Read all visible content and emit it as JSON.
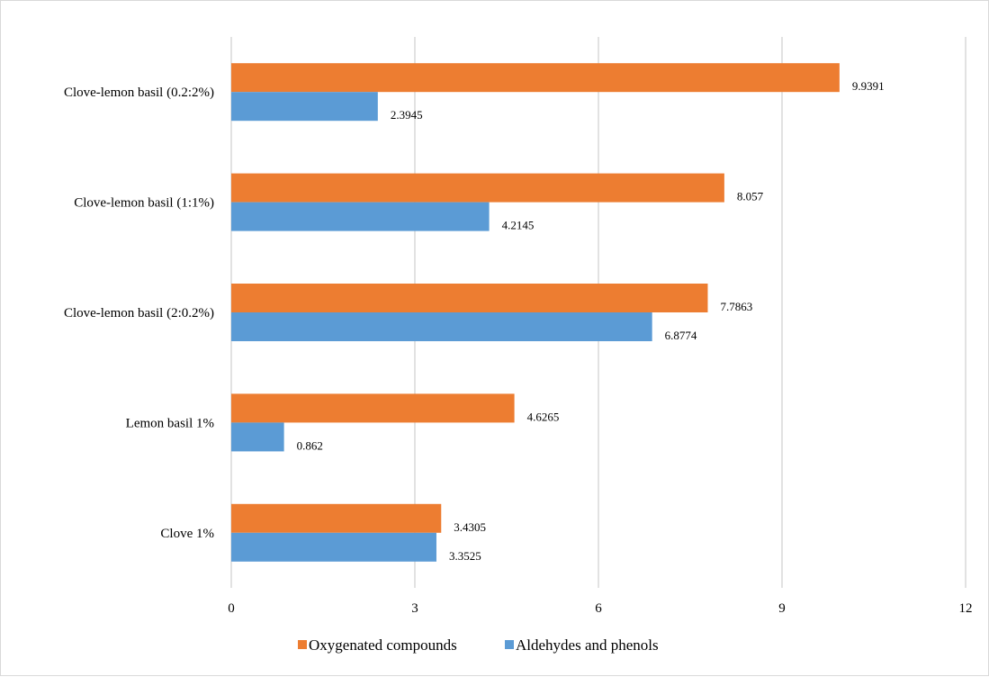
{
  "chart_data": {
    "type": "bar",
    "orientation": "horizontal",
    "categories": [
      "Clove 1%",
      "Lemon basil 1%",
      "Clove-lemon basil (2:0.2%)",
      "Clove-lemon basil (1:1%)",
      "Clove-lemon basil (0.2:2%)"
    ],
    "series": [
      {
        "name": "Oxygenated compounds",
        "color": "#ed7d31",
        "values": [
          3.4305,
          4.6265,
          7.7863,
          8.057,
          9.9391
        ]
      },
      {
        "name": "Aldehydes and phenols",
        "color": "#5b9bd5",
        "values": [
          3.3525,
          0.862,
          6.8774,
          4.2145,
          2.3945
        ]
      }
    ],
    "xlim": [
      0,
      12
    ],
    "x_ticks": [
      0,
      3,
      6,
      9,
      12
    ],
    "grid": true,
    "legend_position": "bottom",
    "data_labels": true
  }
}
